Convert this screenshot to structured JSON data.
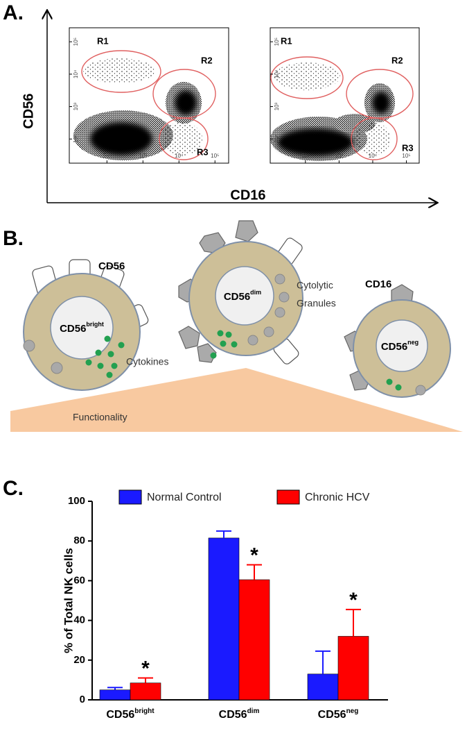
{
  "panel_a": {
    "label": "A.",
    "y_axis": "CD56",
    "x_axis": "CD16",
    "xlim": [
      9,
      240000
    ],
    "ylim": [
      18,
      270000
    ],
    "log_scale": true,
    "ticks": [
      {
        "value": 100,
        "label": "10²"
      },
      {
        "value": 1000,
        "label": "10³"
      },
      {
        "value": 10000,
        "label": "10⁴"
      },
      {
        "value": 100000,
        "label": "10⁵"
      }
    ],
    "plots": [
      {
        "gates": [
          "R1",
          "R2",
          "R3"
        ]
      },
      {
        "gates": [
          "R1",
          "R2",
          "R3"
        ]
      }
    ]
  },
  "panel_b": {
    "label": "B.",
    "cells": [
      {
        "name": "CD56",
        "sup": "bright"
      },
      {
        "name": "CD56",
        "sup": "dim"
      },
      {
        "name": "CD56",
        "sup": "neg"
      }
    ],
    "receptor_labels": [
      "CD56",
      "CD16"
    ],
    "granules": [
      "Cytolytic",
      "Granules"
    ],
    "cytokines": "Cytokines",
    "gradient": "Functionality"
  },
  "chart_data": {
    "type": "bar",
    "label": "C.",
    "y_label": "% of Total NK cells",
    "categories": [
      {
        "name": "CD56",
        "sup": "bright"
      },
      {
        "name": "CD56",
        "sup": "dim"
      },
      {
        "name": "CD56",
        "sup": "neg"
      }
    ],
    "series": [
      {
        "name": "Normal Control",
        "color": "#1a1aff",
        "values": [
          5,
          81.5,
          13
        ],
        "errors": [
          1.2,
          3.5,
          11.5
        ]
      },
      {
        "name": "Chronic HCV",
        "color": "#ff0000",
        "values": [
          8.5,
          60.5,
          32
        ],
        "errors": [
          2.5,
          7.5,
          13.5
        ],
        "markers": [
          "*",
          "*",
          "*"
        ]
      }
    ],
    "ylim": [
      0,
      100
    ],
    "yticks": [
      0,
      20,
      40,
      60,
      80,
      100
    ],
    "legend": "top"
  }
}
